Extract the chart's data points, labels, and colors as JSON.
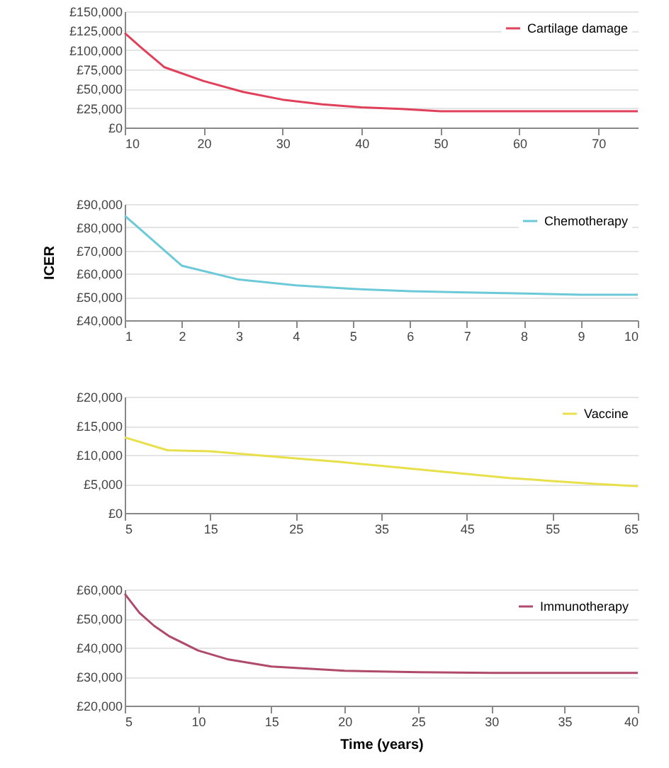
{
  "chart_data": [
    {
      "type": "line",
      "legend": "top right",
      "grid": "y",
      "xlim": [
        10,
        75
      ],
      "xticks": [
        10,
        20,
        30,
        40,
        50,
        60,
        70
      ],
      "ylim": [
        0,
        150000
      ],
      "yticks": [
        {
          "value": 0,
          "label": "£0"
        },
        {
          "value": 25000,
          "label": "£25,000"
        },
        {
          "value": 50000,
          "label": "£50,000"
        },
        {
          "value": 75000,
          "label": "£75,000"
        },
        {
          "value": 100000,
          "label": "£100,000"
        },
        {
          "value": 125000,
          "label": "£125,000"
        },
        {
          "value": 150000,
          "label": "£150,000"
        }
      ],
      "series": [
        {
          "name": "Cartilage damage",
          "color": "#e0405a",
          "x": [
            10,
            12,
            15,
            20,
            25,
            30,
            35,
            40,
            45,
            50,
            55,
            60,
            65,
            70,
            75
          ],
          "values": [
            122000,
            104000,
            78000,
            60000,
            46000,
            36000,
            30000,
            26000,
            24000,
            21000,
            21000,
            21000,
            21000,
            21000,
            21000
          ]
        }
      ]
    },
    {
      "type": "line",
      "legend": "top right",
      "grid": "y",
      "ylabel": "ICER",
      "xlim": [
        1,
        10
      ],
      "xticks": [
        1,
        2,
        3,
        4,
        5,
        6,
        7,
        8,
        9,
        10
      ],
      "ylim": [
        40000,
        90000
      ],
      "yticks": [
        {
          "value": 40000,
          "label": "£40,000"
        },
        {
          "value": 50000,
          "label": "£50,000"
        },
        {
          "value": 60000,
          "label": "£60,000"
        },
        {
          "value": 70000,
          "label": "£70,000"
        },
        {
          "value": 80000,
          "label": "£80,000"
        },
        {
          "value": 90000,
          "label": "£90,000"
        }
      ],
      "series": [
        {
          "name": "Chemotherapy",
          "color": "#6cc9d8",
          "x": [
            1,
            2,
            3,
            4,
            5,
            6,
            7,
            8,
            9,
            10
          ],
          "values": [
            85000,
            63500,
            57500,
            55000,
            53500,
            52500,
            52000,
            51500,
            51000,
            51000
          ]
        }
      ]
    },
    {
      "type": "line",
      "legend": "top right",
      "grid": "y",
      "xlim": [
        5,
        65
      ],
      "xticks": [
        5,
        15,
        25,
        35,
        45,
        55,
        65
      ],
      "ylim": [
        0,
        20000
      ],
      "yticks": [
        {
          "value": 0,
          "label": "£0"
        },
        {
          "value": 5000,
          "label": "£5,000"
        },
        {
          "value": 10000,
          "label": "£10,000"
        },
        {
          "value": 15000,
          "label": "£15,000"
        },
        {
          "value": 20000,
          "label": "£20,000"
        }
      ],
      "series": [
        {
          "name": "Vaccine",
          "color": "#e8e04a",
          "x": [
            5,
            10,
            15,
            20,
            25,
            30,
            35,
            40,
            45,
            50,
            55,
            60,
            65
          ],
          "values": [
            13000,
            10800,
            10600,
            10000,
            9400,
            8800,
            8100,
            7400,
            6700,
            6000,
            5500,
            5000,
            4600
          ]
        }
      ]
    },
    {
      "type": "line",
      "legend": "top right",
      "grid": "y",
      "xlabel": "Time (years)",
      "xlim": [
        5,
        40
      ],
      "xticks": [
        5,
        10,
        15,
        20,
        25,
        30,
        35,
        40
      ],
      "ylim": [
        20000,
        60000
      ],
      "yticks": [
        {
          "value": 20000,
          "label": "£20,000"
        },
        {
          "value": 30000,
          "label": "£30,000"
        },
        {
          "value": 40000,
          "label": "£40,000"
        },
        {
          "value": 50000,
          "label": "£50,000"
        },
        {
          "value": 60000,
          "label": "£60,000"
        }
      ],
      "series": [
        {
          "name": "Immunotherapy",
          "color": "#b04a6a",
          "x": [
            5,
            6,
            7,
            8,
            10,
            12,
            15,
            20,
            25,
            30,
            35,
            40
          ],
          "values": [
            58500,
            52000,
            47500,
            44000,
            39000,
            36000,
            33500,
            32000,
            31500,
            31300,
            31300,
            31300
          ]
        }
      ]
    }
  ]
}
